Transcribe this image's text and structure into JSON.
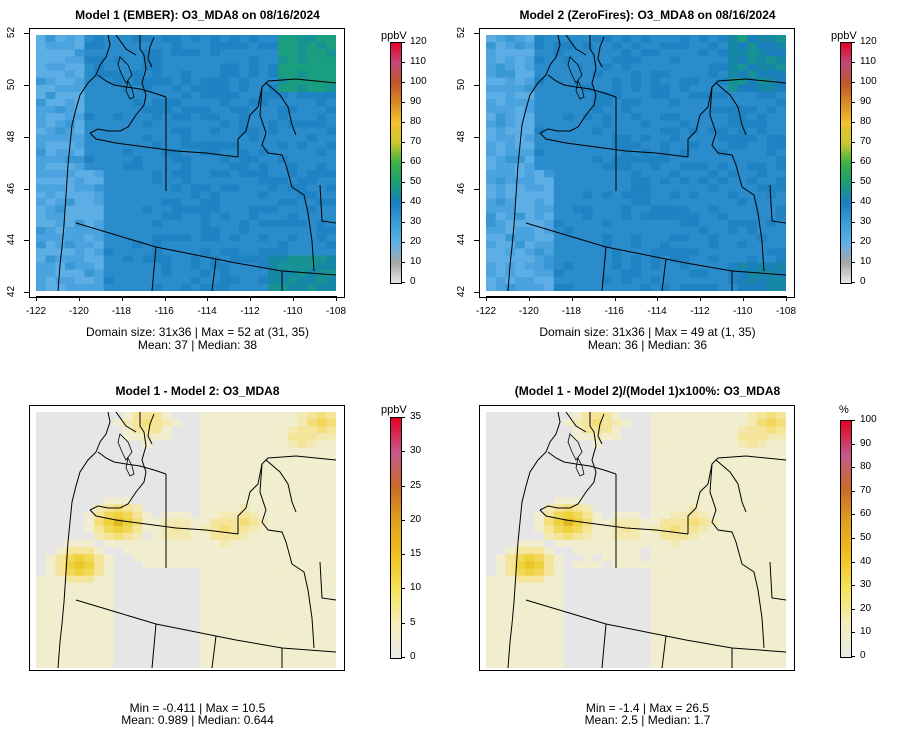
{
  "panels": [
    {
      "title": "Model 1 (EMBER): O3_MDA8 on 08/16/2024",
      "stat_line1": "Domain size: 31x36 | Max = 52 at (31, 35)",
      "stat_line2": "Mean: 37 |  Median: 38",
      "colorbar_unit": "ppbV",
      "colorbar_ticks": [
        "0",
        "10",
        "20",
        "30",
        "40",
        "50",
        "60",
        "70",
        "80",
        "90",
        "100",
        "110",
        "120"
      ],
      "kind": "abs",
      "x_ticks": [
        "-122",
        "-120",
        "-118",
        "-116",
        "-114",
        "-112",
        "-110",
        "-108"
      ],
      "y_ticks": [
        "42",
        "44",
        "46",
        "48",
        "50",
        "52"
      ]
    },
    {
      "title": "Model 2 (ZeroFires): O3_MDA8 on 08/16/2024",
      "stat_line1": "Domain size: 31x36 | Max = 49 at (1, 35)",
      "stat_line2": "Mean: 36 |  Median: 36",
      "colorbar_unit": "ppbV",
      "colorbar_ticks": [
        "0",
        "10",
        "20",
        "30",
        "40",
        "50",
        "60",
        "70",
        "80",
        "90",
        "100",
        "110",
        "120"
      ],
      "kind": "abs",
      "x_ticks": [
        "-122",
        "-120",
        "-118",
        "-116",
        "-114",
        "-112",
        "-110",
        "-108"
      ],
      "y_ticks": [
        "42",
        "44",
        "46",
        "48",
        "50",
        "52"
      ]
    },
    {
      "title": "Model 1 - Model 2: O3_MDA8",
      "stat_line1": "Min = -0.411 | Max = 10.5",
      "stat_line2": "Mean: 0.989 |  Median: 0.644",
      "colorbar_unit": "ppbV",
      "colorbar_ticks": [
        "0",
        "5",
        "10",
        "15",
        "20",
        "25",
        "30",
        "35"
      ],
      "kind": "diff"
    },
    {
      "title": "(Model 1 - Model 2)/(Model 1)x100%: O3_MDA8",
      "stat_line1": "Min = -1.4 | Max = 26.5",
      "stat_line2": "Mean: 2.5 |  Median: 1.7",
      "colorbar_unit": "%",
      "colorbar_ticks": [
        "0",
        "10",
        "20",
        "30",
        "40",
        "50",
        "60",
        "70",
        "80",
        "90",
        "100"
      ],
      "kind": "pct"
    }
  ],
  "colors": {
    "abs_scale": [
      "#e6e6e6",
      "#a8a8a8",
      "#5fb0e6",
      "#3a9fd6",
      "#1a7fc0",
      "#1b9e77",
      "#3cb043",
      "#c8c830",
      "#f2c12e",
      "#d98c26",
      "#c0562a",
      "#c24a7a",
      "#e60026"
    ],
    "diff_scale": [
      "#e8e8e8",
      "#f5eebb",
      "#f5e35a",
      "#f0c020",
      "#e0a020",
      "#c86a2a",
      "#c45a8a",
      "#e60020"
    ]
  }
}
